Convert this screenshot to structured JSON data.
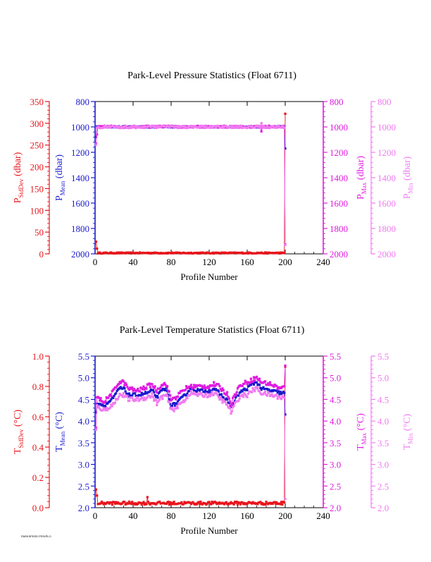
{
  "footer_tag": "PARKSPEED PRS/PLO",
  "colors": {
    "stddev": "#e8141c",
    "mean": "#1a1acd",
    "max": "#e01ae0",
    "min": "#f07af0",
    "axis_black": "#000000"
  },
  "chart_data": [
    {
      "type": "line",
      "title": "Park-Level Pressure Statistics (Float 6711)",
      "xlabel": "Profile Number",
      "xlim": [
        0,
        240
      ],
      "xticks": [
        0,
        40,
        80,
        120,
        160,
        200,
        240
      ],
      "axes": {
        "stddev": {
          "label": "P",
          "sub": "StdDev",
          "unit": "(dbar)",
          "range": [
            0,
            350
          ],
          "ticks": [
            0,
            50,
            100,
            150,
            200,
            250,
            300,
            350
          ],
          "tick_labels": [
            "0",
            "50",
            "100",
            "150",
            "200",
            "250",
            "300",
            "350"
          ],
          "inverted": false
        },
        "mean": {
          "label": "P",
          "sub": "Mean",
          "unit": "(dbar)",
          "range": [
            2000,
            800
          ],
          "ticks": [
            2000,
            1800,
            1600,
            1400,
            1200,
            1000,
            800
          ],
          "tick_labels": [
            "2000",
            "1800",
            "1600",
            "1400",
            "1200",
            "1000",
            "800"
          ],
          "inverted": true
        },
        "max": {
          "label": "P",
          "sub": "Max",
          "unit": "(dbar)",
          "range": [
            2000,
            800
          ],
          "ticks": [
            2000,
            1800,
            1600,
            1400,
            1200,
            1000,
            800
          ],
          "tick_labels": [
            "2000",
            "1800",
            "1600",
            "1400",
            "1200",
            "1000",
            "800"
          ],
          "inverted": true
        },
        "min": {
          "label": "P",
          "sub": "Min",
          "unit": "(dbar)",
          "range": [
            2000,
            800
          ],
          "ticks": [
            2000,
            1800,
            1600,
            1400,
            1200,
            1000,
            800
          ],
          "tick_labels": [
            "2000",
            "1800",
            "1600",
            "1400",
            "1200",
            "1000",
            "800"
          ],
          "inverted": true
        }
      },
      "series": [
        {
          "axis": "stddev",
          "baseline": 2.0,
          "noise": 1.2,
          "anomalies": [
            [
              1,
              28
            ],
            [
              2,
              12
            ],
            [
              200,
              322
            ]
          ]
        },
        {
          "axis": "mean",
          "baseline": 1000,
          "noise": 6,
          "anomalies": [
            [
              1,
              1080
            ],
            [
              200,
              1170
            ]
          ]
        },
        {
          "axis": "max",
          "baseline": 998,
          "noise": 8,
          "anomalies": [
            [
              1,
              1130
            ],
            [
              2,
              1060
            ],
            [
              175,
              1035
            ],
            [
              200,
              1925
            ]
          ]
        },
        {
          "axis": "min",
          "baseline": 1000,
          "noise": 10,
          "anomalies": [
            [
              1,
              1140
            ],
            [
              175,
              970
            ],
            [
              200,
              1930
            ]
          ]
        }
      ]
    },
    {
      "type": "line",
      "title": "Park-Level Temperature Statistics (Float 6711)",
      "xlabel": "Profile Number",
      "xlim": [
        0,
        240
      ],
      "xticks": [
        0,
        40,
        80,
        120,
        160,
        200,
        240
      ],
      "axes": {
        "stddev": {
          "label": "T",
          "sub": "StdDev",
          "unit": "(°C)",
          "range": [
            0,
            1
          ],
          "ticks": [
            0,
            0.2,
            0.4,
            0.6,
            0.8,
            1.0
          ],
          "tick_labels": [
            "0.0",
            "0.2",
            "0.4",
            "0.6",
            "0.8",
            "1.0"
          ],
          "inverted": false
        },
        "mean": {
          "label": "T",
          "sub": "Mean",
          "unit": "(°C)",
          "range": [
            2,
            5.5
          ],
          "ticks": [
            2,
            2.5,
            3,
            3.5,
            4,
            4.5,
            5,
            5.5
          ],
          "tick_labels": [
            "2.0",
            "2.5",
            "3.0",
            "3.5",
            "4.0",
            "4.5",
            "5.0",
            "5.5"
          ],
          "inverted": false
        },
        "max": {
          "label": "T",
          "sub": "Max",
          "unit": "(°C)",
          "range": [
            2,
            5.5
          ],
          "ticks": [
            2,
            2.5,
            3,
            3.5,
            4,
            4.5,
            5,
            5.5
          ],
          "tick_labels": [
            "2.0",
            "2.5",
            "3.0",
            "3.5",
            "4.0",
            "4.5",
            "5.0",
            "5.5"
          ],
          "inverted": false
        },
        "min": {
          "label": "T",
          "sub": "Min",
          "unit": "(°C)",
          "range": [
            2,
            5.5
          ],
          "ticks": [
            2,
            2.5,
            3,
            3.5,
            4,
            4.5,
            5,
            5.5
          ],
          "tick_labels": [
            "2.0",
            "2.5",
            "3.0",
            "3.5",
            "4.0",
            "4.5",
            "5.0",
            "5.5"
          ],
          "inverted": false
        }
      },
      "series": [
        {
          "axis": "stddev",
          "baseline": 0.03,
          "noise": 0.01,
          "anomalies": [
            [
              1,
              0.12
            ],
            [
              2,
              0.08
            ],
            [
              55,
              0.07
            ],
            [
              200,
              0.93
            ]
          ]
        },
        {
          "axis": "mean",
          "profile": [
            [
              0,
              4.45
            ],
            [
              5,
              4.4
            ],
            [
              10,
              4.35
            ],
            [
              20,
              4.55
            ],
            [
              25,
              4.75
            ],
            [
              30,
              4.75
            ],
            [
              35,
              4.6
            ],
            [
              45,
              4.6
            ],
            [
              55,
              4.65
            ],
            [
              60,
              4.7
            ],
            [
              65,
              4.55
            ],
            [
              70,
              4.7
            ],
            [
              75,
              4.75
            ],
            [
              80,
              4.35
            ],
            [
              85,
              4.4
            ],
            [
              95,
              4.6
            ],
            [
              100,
              4.75
            ],
            [
              110,
              4.7
            ],
            [
              120,
              4.7
            ],
            [
              125,
              4.75
            ],
            [
              130,
              4.65
            ],
            [
              140,
              4.45
            ],
            [
              143,
              4.3
            ],
            [
              150,
              4.6
            ],
            [
              155,
              4.7
            ],
            [
              160,
              4.75
            ],
            [
              165,
              4.85
            ],
            [
              170,
              4.9
            ],
            [
              175,
              4.75
            ],
            [
              185,
              4.7
            ],
            [
              195,
              4.65
            ],
            [
              200,
              4.65
            ]
          ],
          "noise": 0.04,
          "anomalies": [
            [
              1,
              4.2
            ],
            [
              200,
              4.15
            ]
          ]
        },
        {
          "axis": "max",
          "profile": [
            [
              0,
              4.55
            ],
            [
              5,
              4.5
            ],
            [
              10,
              4.45
            ],
            [
              20,
              4.7
            ],
            [
              25,
              4.9
            ],
            [
              30,
              4.9
            ],
            [
              35,
              4.75
            ],
            [
              45,
              4.7
            ],
            [
              55,
              4.8
            ],
            [
              60,
              4.85
            ],
            [
              65,
              4.7
            ],
            [
              70,
              4.85
            ],
            [
              75,
              4.85
            ],
            [
              80,
              4.5
            ],
            [
              85,
              4.55
            ],
            [
              95,
              4.75
            ],
            [
              100,
              4.8
            ],
            [
              110,
              4.8
            ],
            [
              120,
              4.8
            ],
            [
              125,
              4.85
            ],
            [
              130,
              4.8
            ],
            [
              140,
              4.6
            ],
            [
              143,
              4.4
            ],
            [
              150,
              4.75
            ],
            [
              155,
              4.85
            ],
            [
              160,
              4.9
            ],
            [
              165,
              4.95
            ],
            [
              170,
              5.0
            ],
            [
              175,
              4.9
            ],
            [
              185,
              4.85
            ],
            [
              195,
              4.75
            ],
            [
              200,
              4.8
            ]
          ],
          "noise": 0.05,
          "anomalies": [
            [
              1,
              3.85
            ],
            [
              200,
              5.28
            ]
          ]
        },
        {
          "axis": "min",
          "profile": [
            [
              0,
              4.35
            ],
            [
              5,
              4.3
            ],
            [
              10,
              4.25
            ],
            [
              20,
              4.4
            ],
            [
              25,
              4.6
            ],
            [
              30,
              4.6
            ],
            [
              35,
              4.5
            ],
            [
              45,
              4.5
            ],
            [
              55,
              4.55
            ],
            [
              60,
              4.6
            ],
            [
              65,
              4.4
            ],
            [
              70,
              4.55
            ],
            [
              75,
              4.6
            ],
            [
              80,
              4.25
            ],
            [
              85,
              4.3
            ],
            [
              95,
              4.5
            ],
            [
              100,
              4.65
            ],
            [
              110,
              4.6
            ],
            [
              120,
              4.6
            ],
            [
              125,
              4.65
            ],
            [
              130,
              4.55
            ],
            [
              140,
              4.35
            ],
            [
              143,
              4.2
            ],
            [
              150,
              4.5
            ],
            [
              155,
              4.6
            ],
            [
              160,
              4.6
            ],
            [
              165,
              4.7
            ],
            [
              170,
              4.75
            ],
            [
              175,
              4.65
            ],
            [
              185,
              4.6
            ],
            [
              195,
              4.55
            ],
            [
              200,
              4.55
            ]
          ],
          "noise": 0.05,
          "anomalies": [
            [
              1,
              3.8
            ],
            [
              200,
              2.2
            ]
          ]
        }
      ]
    }
  ]
}
